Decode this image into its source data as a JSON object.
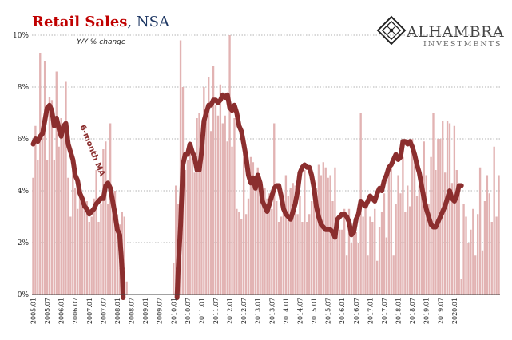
{
  "title_main": "Retail Sales",
  "title_sep": ", ",
  "title_sub": "NSA",
  "subtitle": "Y/Y % change",
  "logo": {
    "name": "ALHAMBRA",
    "sub": "INVESTMENTS",
    "icon": "diamond-lattice-icon"
  },
  "colors": {
    "bars": "#e2b3b3",
    "ma_line": "#8b2e2e",
    "grid": "#9a9a9a",
    "title_main": "#c00000",
    "title_sub": "#1f3864"
  },
  "chart_data": {
    "type": "bar",
    "x_start": "2005.01",
    "ylim": [
      0,
      10
    ],
    "yticks": [
      "0%",
      "2%",
      "4%",
      "6%",
      "8%",
      "10%"
    ],
    "xticks": [
      "2005.01",
      "2005.07",
      "2006.01",
      "2006.07",
      "2007.01",
      "2007.07",
      "2008.01",
      "2008.07",
      "2009.01",
      "2009.07",
      "2010.01",
      "2010.07",
      "2011.01",
      "2011.07",
      "2012.01",
      "2012.07",
      "2013.01",
      "2013.07",
      "2014.01",
      "2014.07",
      "2015.01",
      "2015.07",
      "2016.01",
      "2016.07",
      "2017.01",
      "2017.07",
      "2018.01",
      "2018.07",
      "2019.01",
      "2019.07",
      "2020.01"
    ],
    "grid": true,
    "series": [
      {
        "kind": "bars",
        "values": [
          4.5,
          6.5,
          5.2,
          9.3,
          6.5,
          9.0,
          5.2,
          7.6,
          7.5,
          5.2,
          8.6,
          5.7,
          6.8,
          6.6,
          8.2,
          4.5,
          3.0,
          5.2,
          4.1,
          3.3,
          3.8,
          3.4,
          3.4,
          3.6,
          2.8,
          3.0,
          3.7,
          4.8,
          2.8,
          3.5,
          5.6,
          5.9,
          3.5,
          6.6,
          3.6,
          4.0,
          3.1,
          2.7,
          3.2,
          3.0,
          0.5,
          0,
          0,
          0,
          0,
          0,
          0,
          0,
          0,
          0,
          0,
          0,
          0,
          0,
          0,
          0,
          0,
          0,
          0,
          0,
          1.2,
          4.2,
          3.5,
          9.8,
          8.0,
          4.8,
          5.2,
          5.7,
          5.5,
          4.7,
          6.8,
          7.0,
          5.2,
          8.0,
          7.2,
          8.4,
          6.3,
          8.8,
          7.3,
          6.9,
          8.1,
          6.6,
          6.9,
          5.9,
          10.0,
          5.7,
          6.8,
          3.3,
          3.2,
          2.9,
          5.6,
          3.1,
          3.7,
          5.3,
          5.1,
          4.5,
          4.9,
          4.5,
          3.5,
          4.1,
          3.7,
          3.9,
          3.3,
          6.6,
          3.6,
          2.8,
          3.0,
          3.2,
          4.6,
          3.8,
          4.1,
          4.3,
          4.2,
          3.1,
          3.8,
          2.8,
          4.8,
          2.8,
          3.1,
          3.6,
          3.9,
          4.1,
          5.0,
          4.6,
          5.1,
          4.9,
          4.5,
          4.6,
          3.6,
          4.9,
          2.9,
          2.5,
          2.5,
          3.3,
          1.5,
          3.3,
          2.0,
          2.6,
          2.4,
          2.0,
          7.0,
          3.0,
          3.3,
          1.5,
          3.0,
          2.8,
          3.3,
          1.3,
          2.6,
          3.2,
          3.9,
          2.2,
          4.7,
          4.9,
          1.5,
          3.5,
          4.6,
          3.9,
          5.3,
          3.2,
          4.2,
          3.4,
          6.0,
          5.3,
          3.8,
          4.2,
          3.9,
          5.9,
          4.6,
          3.5,
          5.3,
          7.0,
          4.8,
          6.0,
          6.0,
          6.7,
          4.7,
          6.7,
          6.6,
          4.3,
          6.5,
          4.8,
          4.0,
          0.6,
          3.5,
          3.0,
          2.0,
          2.5,
          3.3,
          1.5,
          3.1,
          4.9,
          1.7,
          3.6,
          4.6,
          3.9,
          2.8,
          5.7,
          3.0,
          4.6
        ]
      },
      {
        "kind": "line",
        "name": "6-month MA",
        "values": [
          5.8,
          6.0,
          5.9,
          6.1,
          6.2,
          6.7,
          7.2,
          7.3,
          7.1,
          6.5,
          6.8,
          6.4,
          6.1,
          6.5,
          6.6,
          5.8,
          5.5,
          5.2,
          4.6,
          4.4,
          3.9,
          3.7,
          3.4,
          3.3,
          3.1,
          3.2,
          3.3,
          3.5,
          3.6,
          3.7,
          3.7,
          4.2,
          4.3,
          4.1,
          3.6,
          3.1,
          2.5,
          2.3,
          1.0,
          0,
          0,
          0,
          0,
          0,
          0,
          0,
          0,
          0,
          0,
          0,
          0,
          0,
          0,
          0,
          0,
          0,
          0,
          0,
          0,
          0,
          0,
          0,
          1.0,
          2.7,
          5.0,
          5.4,
          5.4,
          5.8,
          5.5,
          5.3,
          4.8,
          4.8,
          5.5,
          6.7,
          7.0,
          7.3,
          7.3,
          7.5,
          7.5,
          7.4,
          7.5,
          7.7,
          7.6,
          7.7,
          7.2,
          7.1,
          7.3,
          7.0,
          6.5,
          6.3,
          5.8,
          5.3,
          4.6,
          4.3,
          4.5,
          4.1,
          4.6,
          4.3,
          3.6,
          3.4,
          3.2,
          3.5,
          3.8,
          4.1,
          4.2,
          4.2,
          3.8,
          3.3,
          3.1,
          3.0,
          2.9,
          3.2,
          3.5,
          4.0,
          4.7,
          4.9,
          5.0,
          4.9,
          4.9,
          4.6,
          4.1,
          3.4,
          3.0,
          2.7,
          2.6,
          2.5,
          2.5,
          2.5,
          2.4,
          2.2,
          2.9,
          3.0,
          3.1,
          3.1,
          3.0,
          2.8,
          2.3,
          2.4,
          2.9,
          3.1,
          3.6,
          3.5,
          3.4,
          3.6,
          3.8,
          3.7,
          3.6,
          3.9,
          4.1,
          4.0,
          4.4,
          4.6,
          4.9,
          5.0,
          5.2,
          5.4,
          5.2,
          5.3,
          5.9,
          5.9,
          5.8,
          5.9,
          5.7,
          5.4,
          5.0,
          4.7,
          4.2,
          3.7,
          3.3,
          3.0,
          2.7,
          2.6,
          2.6,
          2.8,
          3.0,
          3.2,
          3.4,
          3.7,
          4.0,
          3.7,
          3.6,
          3.8,
          4.2,
          4.2
        ]
      }
    ]
  },
  "ma_label": "6-month MA"
}
